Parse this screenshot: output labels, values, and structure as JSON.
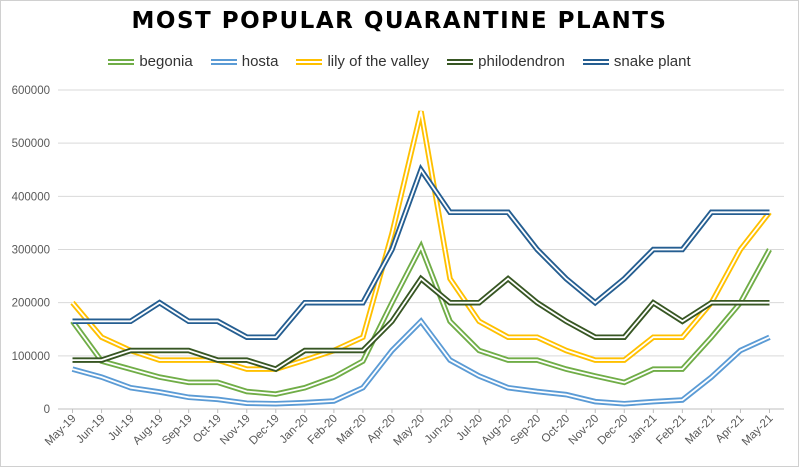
{
  "chart_data": {
    "type": "line",
    "title": "MOST POPULAR QUARANTINE PLANTS",
    "xlabel": "",
    "ylabel": "",
    "ylim": [
      0,
      600000
    ],
    "yticks": [
      "0",
      "100000",
      "200000",
      "300000",
      "400000",
      "500000",
      "600000"
    ],
    "grid": "horizontal",
    "legend": "top",
    "categories": [
      "May-19",
      "Jun-19",
      "Jul-19",
      "Aug-19",
      "Sep-19",
      "Oct-19",
      "Nov-19",
      "Dec-19",
      "Jan-20",
      "Feb-20",
      "Mar-20",
      "Apr-20",
      "May-20",
      "Jun-20",
      "Jul-20",
      "Aug-20",
      "Sep-20",
      "Oct-20",
      "Nov-20",
      "Dec-20",
      "Jan-21",
      "Feb-21",
      "Mar-21",
      "Apr-21",
      "May-21"
    ],
    "series": [
      {
        "name": "begonia",
        "color": "#70ad47",
        "values": [
          165000,
          90000,
          75000,
          60000,
          50000,
          50000,
          33000,
          28000,
          40000,
          60000,
          90000,
          200000,
          305000,
          165000,
          110000,
          92000,
          92000,
          75000,
          62000,
          50000,
          75000,
          75000,
          135000,
          200000,
          300000
        ]
      },
      {
        "name": "hosta",
        "color": "#5b9bd5",
        "values": [
          75000,
          60000,
          40000,
          32000,
          22000,
          18000,
          11000,
          10000,
          12000,
          15000,
          40000,
          110000,
          165000,
          92000,
          62000,
          40000,
          33000,
          27000,
          14000,
          10000,
          14000,
          17000,
          60000,
          110000,
          135000
        ]
      },
      {
        "name": "lily of the valley",
        "color": "#ffc000",
        "values": [
          200000,
          135000,
          110000,
          92000,
          92000,
          92000,
          75000,
          75000,
          92000,
          110000,
          135000,
          330000,
          560000,
          245000,
          165000,
          135000,
          135000,
          110000,
          92000,
          92000,
          135000,
          135000,
          200000,
          300000,
          370000
        ]
      },
      {
        "name": "philodendron",
        "color": "#375623",
        "values": [
          92000,
          92000,
          110000,
          110000,
          110000,
          92000,
          92000,
          75000,
          110000,
          110000,
          110000,
          165000,
          245000,
          200000,
          200000,
          245000,
          200000,
          165000,
          135000,
          135000,
          200000,
          165000,
          200000,
          200000,
          200000
        ]
      },
      {
        "name": "snake plant",
        "color": "#255e91",
        "values": [
          165000,
          165000,
          165000,
          200000,
          165000,
          165000,
          135000,
          135000,
          200000,
          200000,
          200000,
          300000,
          450000,
          370000,
          370000,
          370000,
          300000,
          245000,
          200000,
          245000,
          300000,
          300000,
          370000,
          370000,
          370000
        ]
      }
    ]
  }
}
